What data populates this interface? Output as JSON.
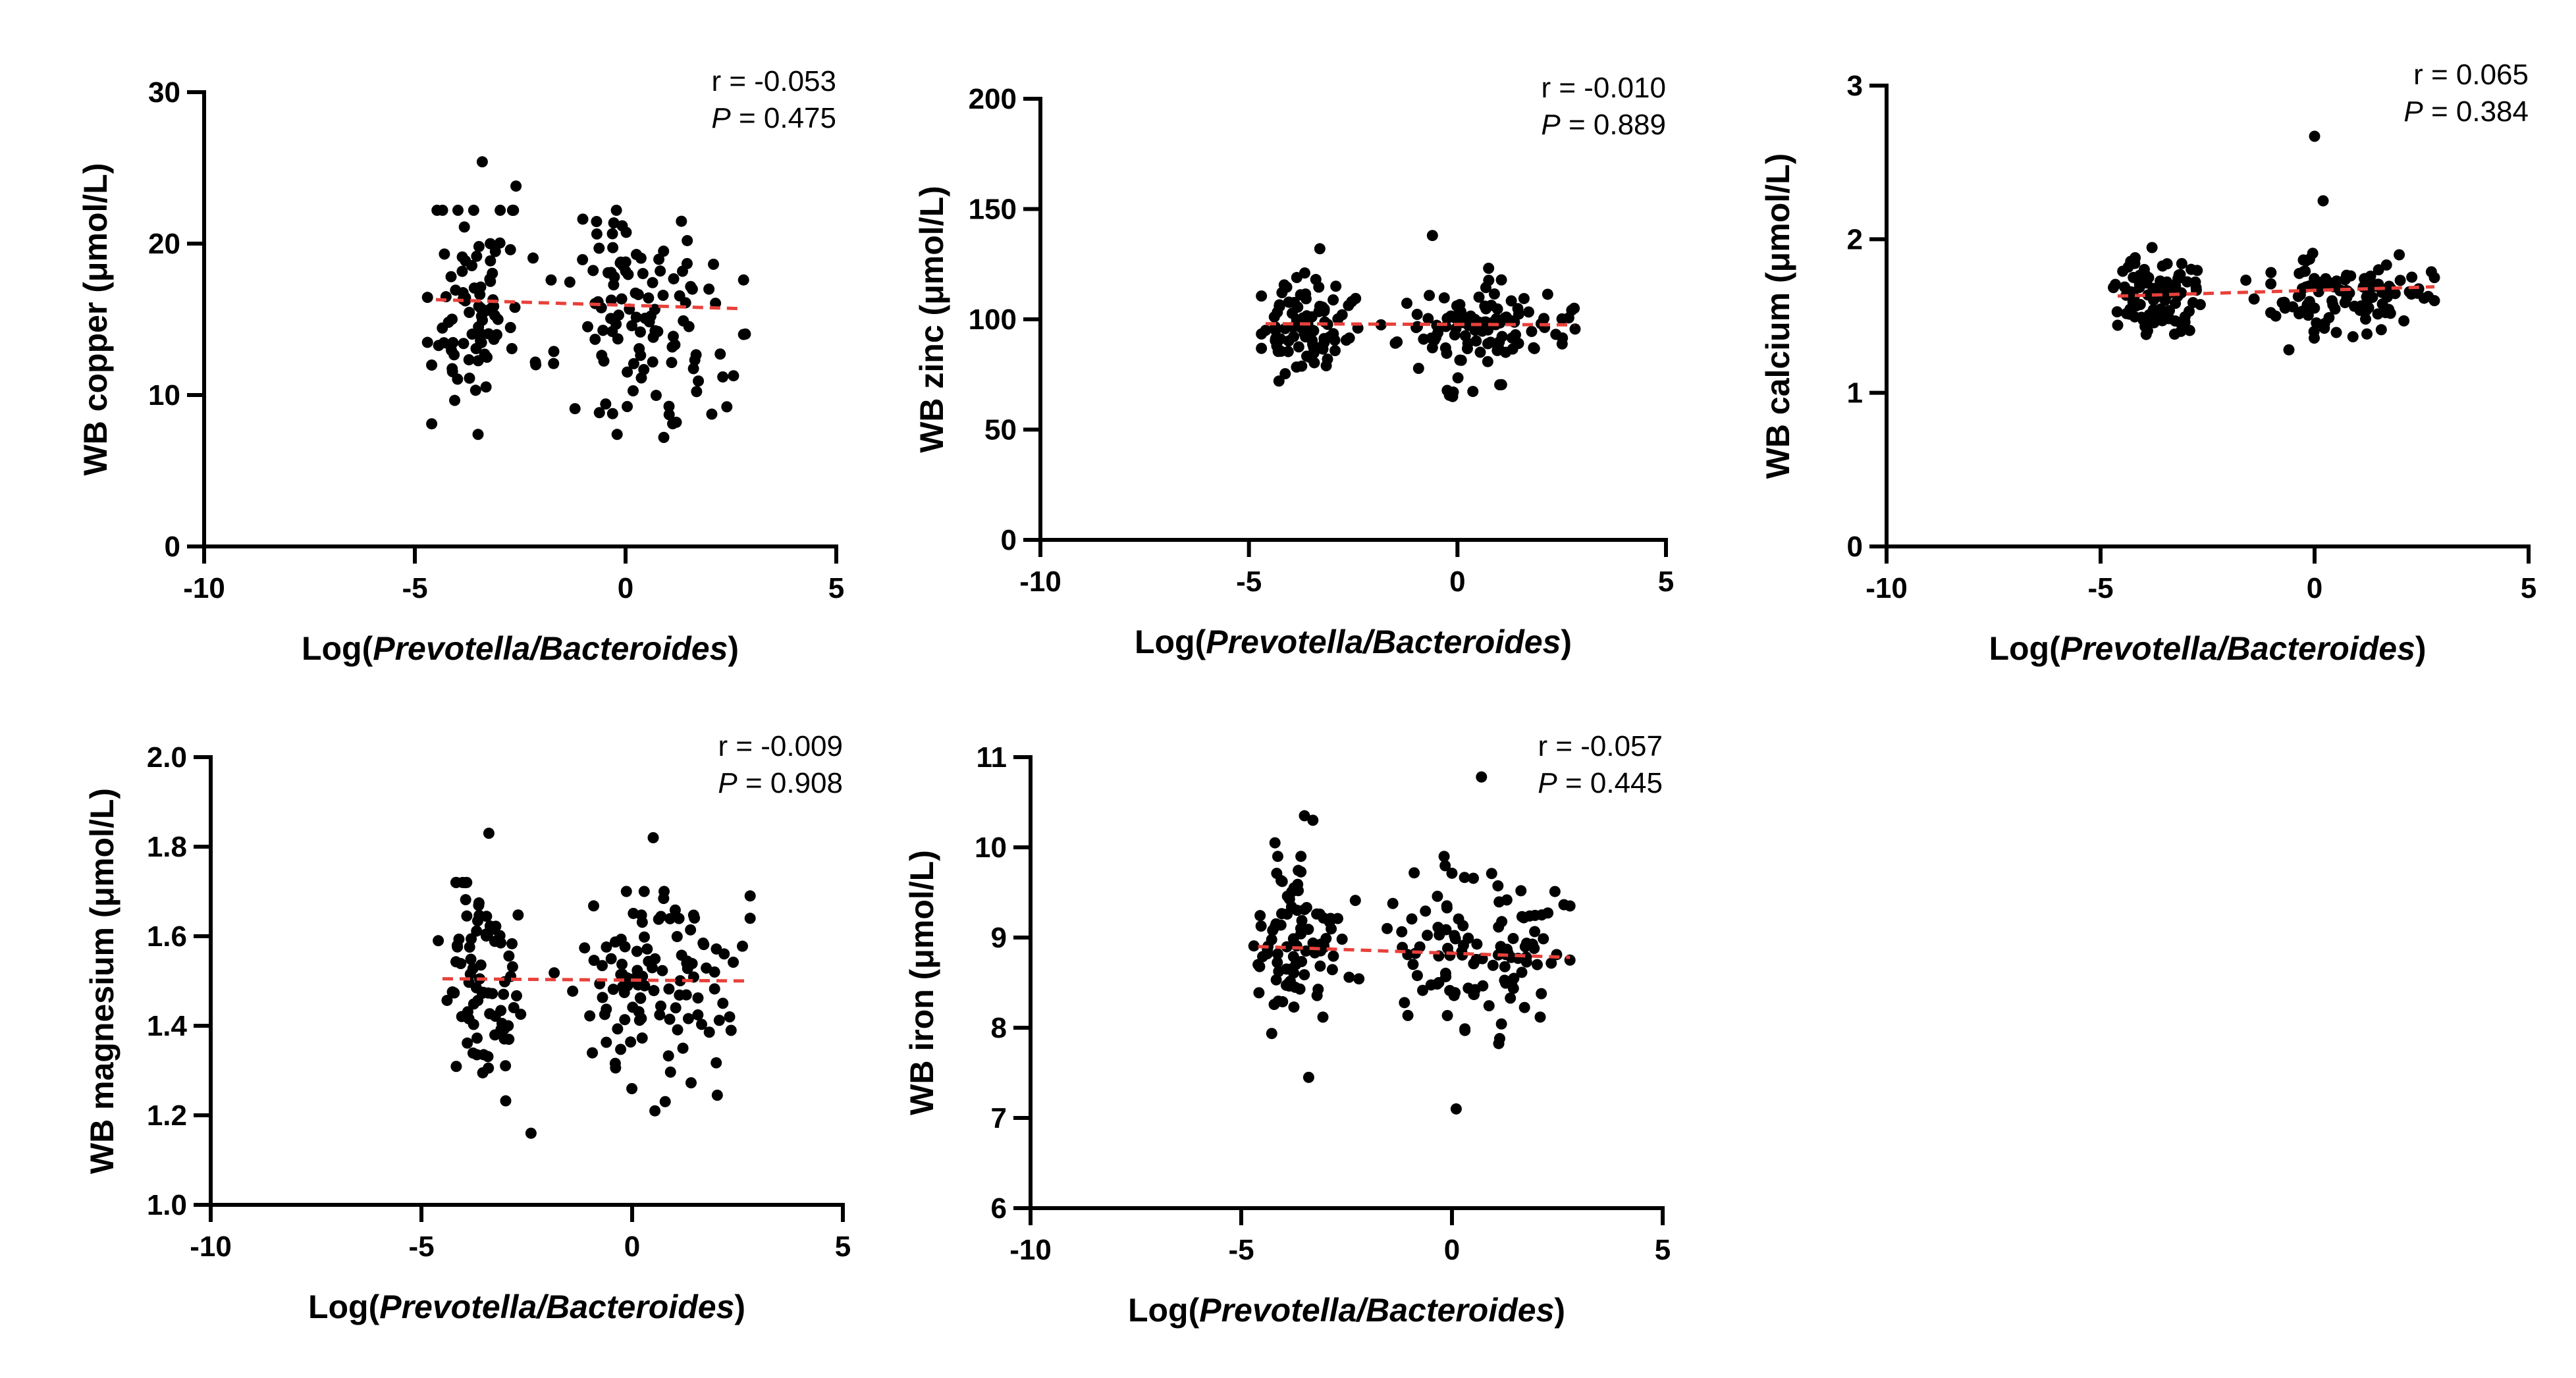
{
  "chart_data": [
    {
      "type": "scatter",
      "xlabel_prefix": "Log(",
      "xlabel_italic": "Prevotella/Bacteroides",
      "xlabel_suffix": ")",
      "ylabel": "WB copper (μmol/L)",
      "xlim": [
        -10,
        5
      ],
      "ylim": [
        0,
        30
      ],
      "x_ticks": [
        -10,
        -5,
        0,
        5
      ],
      "x_tick_labels": [
        "-10",
        "-5",
        "0",
        "5"
      ],
      "y_ticks": [
        0,
        10,
        20,
        30
      ],
      "y_tick_labels": [
        "0",
        "10",
        "20",
        "30"
      ],
      "r_text": "r = -0.053",
      "p_label": "P",
      "p_text": " = 0.475",
      "fit": {
        "x": [
          -4.5,
          2.8
        ],
        "y": [
          16.3,
          15.7
        ],
        "color": "#e8413b"
      },
      "seed": 11,
      "clusters": [
        {
          "cx": -3.7,
          "sx": 0.45,
          "n": 70,
          "ym": 16.2,
          "ys": 3.8,
          "ymin": 7.2,
          "ymax": 22.2
        },
        {
          "cx": -2.9,
          "sx": 0.35,
          "n": 14,
          "ym": 16.0,
          "ys": 4.0,
          "ymin": 7.2,
          "ymax": 22.2
        },
        {
          "cx": 0.2,
          "sx": 0.85,
          "n": 95,
          "ym": 15.5,
          "ys": 4.0,
          "ymin": 7.2,
          "ymax": 22.2
        },
        {
          "cx": 1.9,
          "sx": 0.55,
          "n": 16,
          "ym": 14.5,
          "ys": 3.5,
          "ymin": 8.2,
          "ymax": 20.5
        }
      ],
      "points": [
        [
          -4.6,
          8.1
        ],
        [
          -3.4,
          25.4
        ],
        [
          -2.6,
          23.8
        ],
        [
          -3.5,
          7.4
        ],
        [
          -1.2,
          9.1
        ],
        [
          2.8,
          14.0
        ],
        [
          2.8,
          17.6
        ],
        [
          -0.2,
          7.4
        ]
      ]
    },
    {
      "type": "scatter",
      "xlabel_prefix": "Log(",
      "xlabel_italic": "Prevotella/Bacteroides",
      "xlabel_suffix": ")",
      "ylabel": "WB zinc (μmol/L)",
      "xlim": [
        -10,
        5
      ],
      "ylim": [
        0,
        200
      ],
      "x_ticks": [
        -10,
        -5,
        0,
        5
      ],
      "x_tick_labels": [
        "-10",
        "-5",
        "0",
        "5"
      ],
      "y_ticks": [
        0,
        50,
        100,
        150,
        200
      ],
      "y_tick_labels": [
        "0",
        "50",
        "100",
        "150",
        "200"
      ],
      "r_text": "r = -0.010",
      "p_label": "P",
      "p_text": " = 0.889",
      "fit": {
        "x": [
          -4.6,
          2.8
        ],
        "y": [
          98,
          97.5
        ],
        "color": "#e8413b"
      },
      "seed": 23,
      "clusters": [
        {
          "cx": -3.8,
          "sx": 0.45,
          "n": 80,
          "ym": 96,
          "ys": 10,
          "ymin": 72,
          "ymax": 122
        },
        {
          "cx": -2.9,
          "sx": 0.35,
          "n": 12,
          "ym": 98,
          "ys": 8,
          "ymin": 80,
          "ymax": 115
        },
        {
          "cx": 0.3,
          "sx": 0.85,
          "n": 95,
          "ym": 95,
          "ys": 11,
          "ymin": 65,
          "ymax": 125
        },
        {
          "cx": 2.0,
          "sx": 0.5,
          "n": 14,
          "ym": 96,
          "ys": 9,
          "ymin": 78,
          "ymax": 115
        }
      ],
      "points": [
        [
          -3.3,
          132
        ],
        [
          -0.6,
          138
        ],
        [
          -4.6,
          95
        ],
        [
          2.8,
          105
        ],
        [
          -0.1,
          67
        ]
      ]
    },
    {
      "type": "scatter",
      "xlabel_prefix": "Log(",
      "xlabel_italic": "Prevotella/Bacteroides",
      "xlabel_suffix": ")",
      "ylabel": "WB calcium (μmol/L)",
      "xlim": [
        -10,
        5
      ],
      "ylim": [
        0,
        3
      ],
      "x_ticks": [
        -10,
        -5,
        0,
        5
      ],
      "x_tick_labels": [
        "-10",
        "-5",
        "0",
        "5"
      ],
      "y_ticks": [
        0,
        1,
        2,
        3
      ],
      "y_tick_labels": [
        "0",
        "1",
        "2",
        "3"
      ],
      "r_text": "r = 0.065",
      "p_label": "P",
      "p_text": " = 0.384",
      "fit": {
        "x": [
          -4.6,
          2.8
        ],
        "y": [
          1.63,
          1.69
        ],
        "color": "#e8413b"
      },
      "seed": 37,
      "clusters": [
        {
          "cx": -3.7,
          "sx": 0.45,
          "n": 80,
          "ym": 1.63,
          "ys": 0.13,
          "ymin": 1.38,
          "ymax": 1.98
        },
        {
          "cx": -2.9,
          "sx": 0.3,
          "n": 10,
          "ym": 1.65,
          "ys": 0.12,
          "ymin": 1.4,
          "ymax": 1.95
        },
        {
          "cx": 0.3,
          "sx": 0.8,
          "n": 95,
          "ym": 1.65,
          "ys": 0.14,
          "ymin": 1.32,
          "ymax": 1.98
        },
        {
          "cx": 2.0,
          "sx": 0.5,
          "n": 14,
          "ym": 1.65,
          "ys": 0.1,
          "ymin": 1.42,
          "ymax": 1.85
        }
      ],
      "points": [
        [
          0.0,
          2.67
        ],
        [
          0.2,
          2.25
        ],
        [
          -4.6,
          1.44
        ],
        [
          2.8,
          1.6
        ],
        [
          2.8,
          1.75
        ],
        [
          -0.6,
          1.28
        ]
      ]
    },
    {
      "type": "scatter",
      "xlabel_prefix": "Log(",
      "xlabel_italic": "Prevotella/Bacteroides",
      "xlabel_suffix": ")",
      "ylabel": "WB magnesium (μmol/L)",
      "xlim": [
        -10,
        5
      ],
      "ylim": [
        1.0,
        2.0
      ],
      "x_ticks": [
        -10,
        -5,
        0,
        5
      ],
      "x_tick_labels": [
        "-10",
        "-5",
        "0",
        "5"
      ],
      "y_ticks": [
        1.0,
        1.2,
        1.4,
        1.6,
        1.8,
        2.0
      ],
      "y_tick_labels": [
        "1.0",
        "1.2",
        "1.4",
        "1.6",
        "1.8",
        "2.0"
      ],
      "r_text": "r = -0.009",
      "p_label": "P",
      "p_text": " = 0.908",
      "fit": {
        "x": [
          -4.5,
          2.8
        ],
        "y": [
          1.505,
          1.5
        ],
        "color": "#e8413b"
      },
      "seed": 51,
      "clusters": [
        {
          "cx": -3.7,
          "sx": 0.45,
          "n": 70,
          "ym": 1.5,
          "ys": 0.13,
          "ymin": 1.22,
          "ymax": 1.72
        },
        {
          "cx": -2.9,
          "sx": 0.3,
          "n": 12,
          "ym": 1.55,
          "ys": 0.1,
          "ymin": 1.3,
          "ymax": 1.7
        },
        {
          "cx": 0.3,
          "sx": 0.85,
          "n": 95,
          "ym": 1.48,
          "ys": 0.13,
          "ymin": 1.21,
          "ymax": 1.7
        },
        {
          "cx": 1.9,
          "sx": 0.5,
          "n": 16,
          "ym": 1.46,
          "ys": 0.12,
          "ymin": 1.22,
          "ymax": 1.7
        }
      ],
      "points": [
        [
          -3.4,
          1.83
        ],
        [
          0.5,
          1.82
        ],
        [
          -2.4,
          1.16
        ],
        [
          2.8,
          1.69
        ],
        [
          2.8,
          1.64
        ],
        [
          -4.6,
          1.59
        ]
      ]
    },
    {
      "type": "scatter",
      "xlabel_prefix": "Log(",
      "xlabel_italic": "Prevotella/Bacteroides",
      "xlabel_suffix": ")",
      "ylabel": "WB iron (μmol/L)",
      "xlim": [
        -10,
        5
      ],
      "ylim": [
        6,
        11
      ],
      "x_ticks": [
        -10,
        -5,
        0,
        5
      ],
      "x_tick_labels": [
        "-10",
        "-5",
        "0",
        "5"
      ],
      "y_ticks": [
        6,
        7,
        8,
        9,
        10,
        11
      ],
      "y_tick_labels": [
        "6",
        "7",
        "8",
        "9",
        "10",
        "11"
      ],
      "r_text": "r = -0.057",
      "p_label": "P",
      "p_text": " = 0.445",
      "fit": {
        "x": [
          -4.6,
          2.8
        ],
        "y": [
          8.9,
          8.78
        ],
        "color": "#e8413b"
      },
      "seed": 67,
      "clusters": [
        {
          "cx": -3.8,
          "sx": 0.45,
          "n": 75,
          "ym": 8.85,
          "ys": 0.45,
          "ymin": 7.6,
          "ymax": 9.9
        },
        {
          "cx": -2.9,
          "sx": 0.35,
          "n": 12,
          "ym": 8.8,
          "ys": 0.4,
          "ymin": 7.6,
          "ymax": 9.5
        },
        {
          "cx": 0.3,
          "sx": 0.85,
          "n": 95,
          "ym": 8.8,
          "ys": 0.45,
          "ymin": 7.5,
          "ymax": 9.9
        },
        {
          "cx": 1.9,
          "sx": 0.5,
          "n": 15,
          "ym": 8.7,
          "ys": 0.4,
          "ymin": 7.9,
          "ymax": 9.6
        }
      ],
      "points": [
        [
          -3.5,
          10.35
        ],
        [
          -3.3,
          10.3
        ],
        [
          -4.2,
          10.05
        ],
        [
          0.7,
          10.78
        ],
        [
          0.1,
          7.1
        ],
        [
          -3.4,
          7.45
        ],
        [
          2.8,
          9.35
        ],
        [
          2.8,
          8.75
        ],
        [
          -4.6,
          8.7
        ]
      ]
    }
  ]
}
